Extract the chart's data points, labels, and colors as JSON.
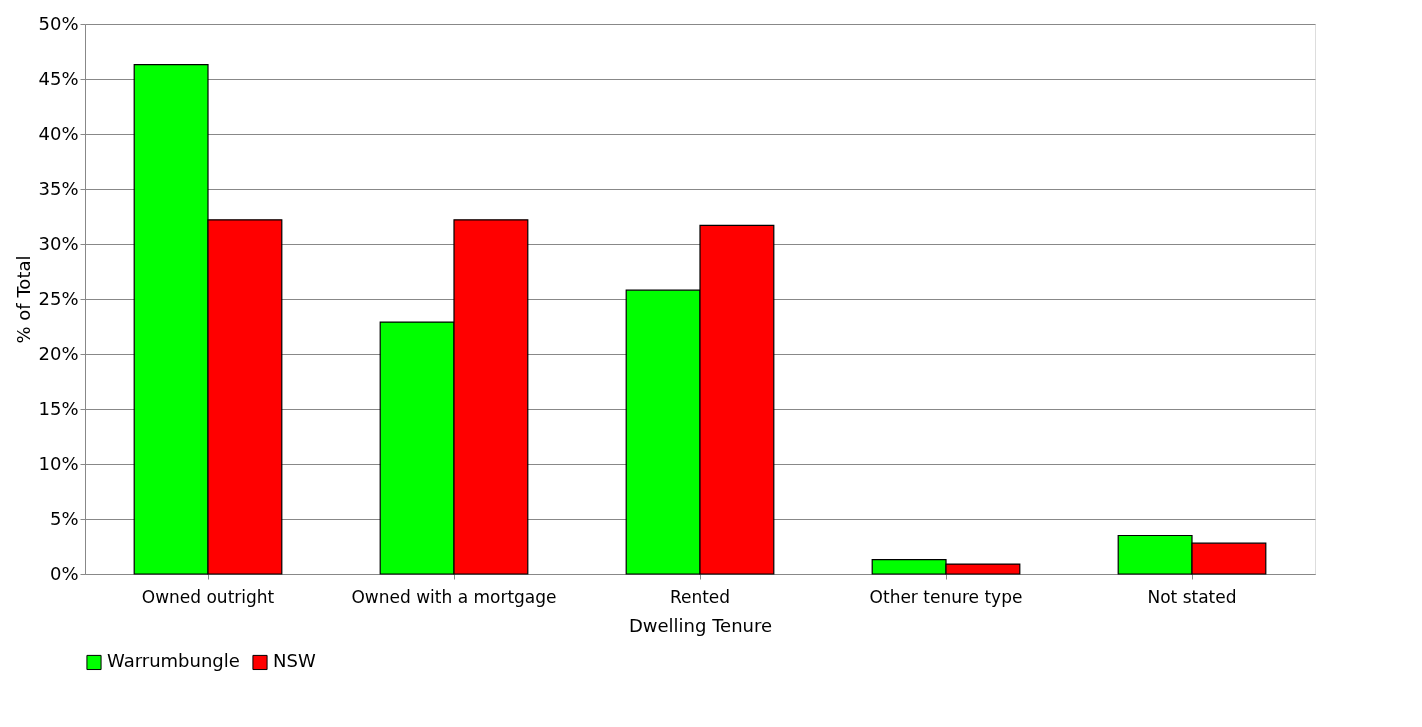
{
  "chart_data": {
    "type": "bar",
    "xlabel": "Dwelling Tenure",
    "ylabel": "% of Total",
    "categories": [
      "Owned outright",
      "Owned with a mortgage",
      "Rented",
      "Other tenure type",
      "Not stated"
    ],
    "series": [
      {
        "name": "Warrumbungle",
        "color": "#00ff00",
        "values": [
          46.3,
          22.9,
          25.8,
          1.3,
          3.5
        ]
      },
      {
        "name": "NSW",
        "color": "#ff0000",
        "values": [
          32.2,
          32.2,
          31.7,
          0.9,
          2.8
        ]
      }
    ],
    "ylim": [
      0,
      50
    ],
    "yticks": [
      {
        "value": 0,
        "label": "0%"
      },
      {
        "value": 5,
        "label": "5%"
      },
      {
        "value": 10,
        "label": "10%"
      },
      {
        "value": 15,
        "label": "15%"
      },
      {
        "value": 20,
        "label": "20%"
      },
      {
        "value": 25,
        "label": "25%"
      },
      {
        "value": 30,
        "label": "30%"
      },
      {
        "value": 35,
        "label": "35%"
      },
      {
        "value": 40,
        "label": "40%"
      },
      {
        "value": 45,
        "label": "45%"
      },
      {
        "value": 50,
        "label": "50%"
      }
    ],
    "grid": "y",
    "legend": "bottom"
  }
}
